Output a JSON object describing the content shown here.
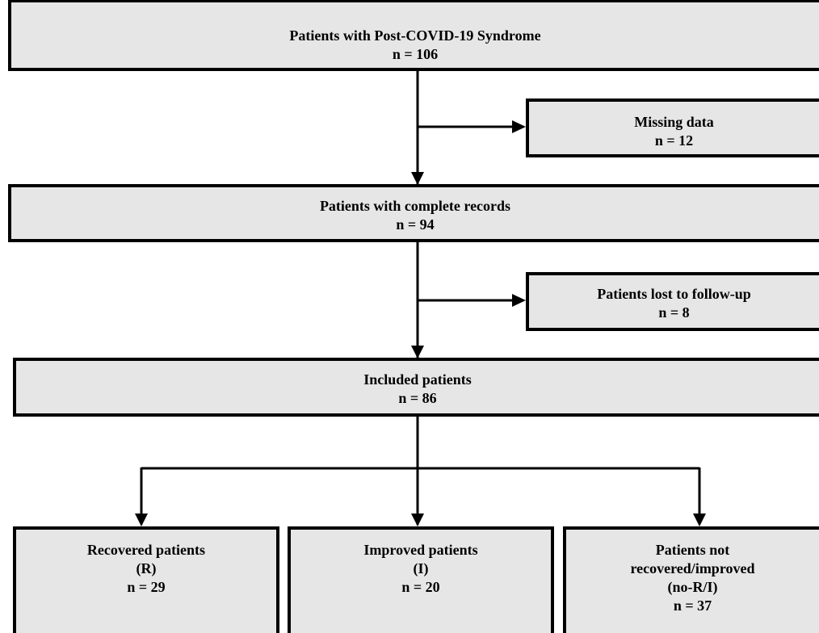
{
  "boxes": {
    "start": {
      "title": "Patients with Post-COVID-19 Syndrome",
      "n": "n = 106"
    },
    "missing": {
      "title": "Missing data",
      "n": "n = 12"
    },
    "complete": {
      "title": "Patients with complete records",
      "n": "n = 94"
    },
    "lost": {
      "title": "Patients lost to follow-up",
      "n": "n = 8"
    },
    "included": {
      "title": "Included patients",
      "n": "n = 86"
    },
    "recovered": {
      "title": "Recovered patients",
      "code": "(R)",
      "n": "n = 29"
    },
    "improved": {
      "title": "Improved patients",
      "code": "(I)",
      "n": "n = 20"
    },
    "not_recovered": {
      "title_line1": "Patients not",
      "title_line2": "recovered/improved",
      "code": "(no-R/I)",
      "n": "n = 37"
    }
  },
  "colors": {
    "box_fill": "#e6e6e6",
    "line": "#000000"
  }
}
